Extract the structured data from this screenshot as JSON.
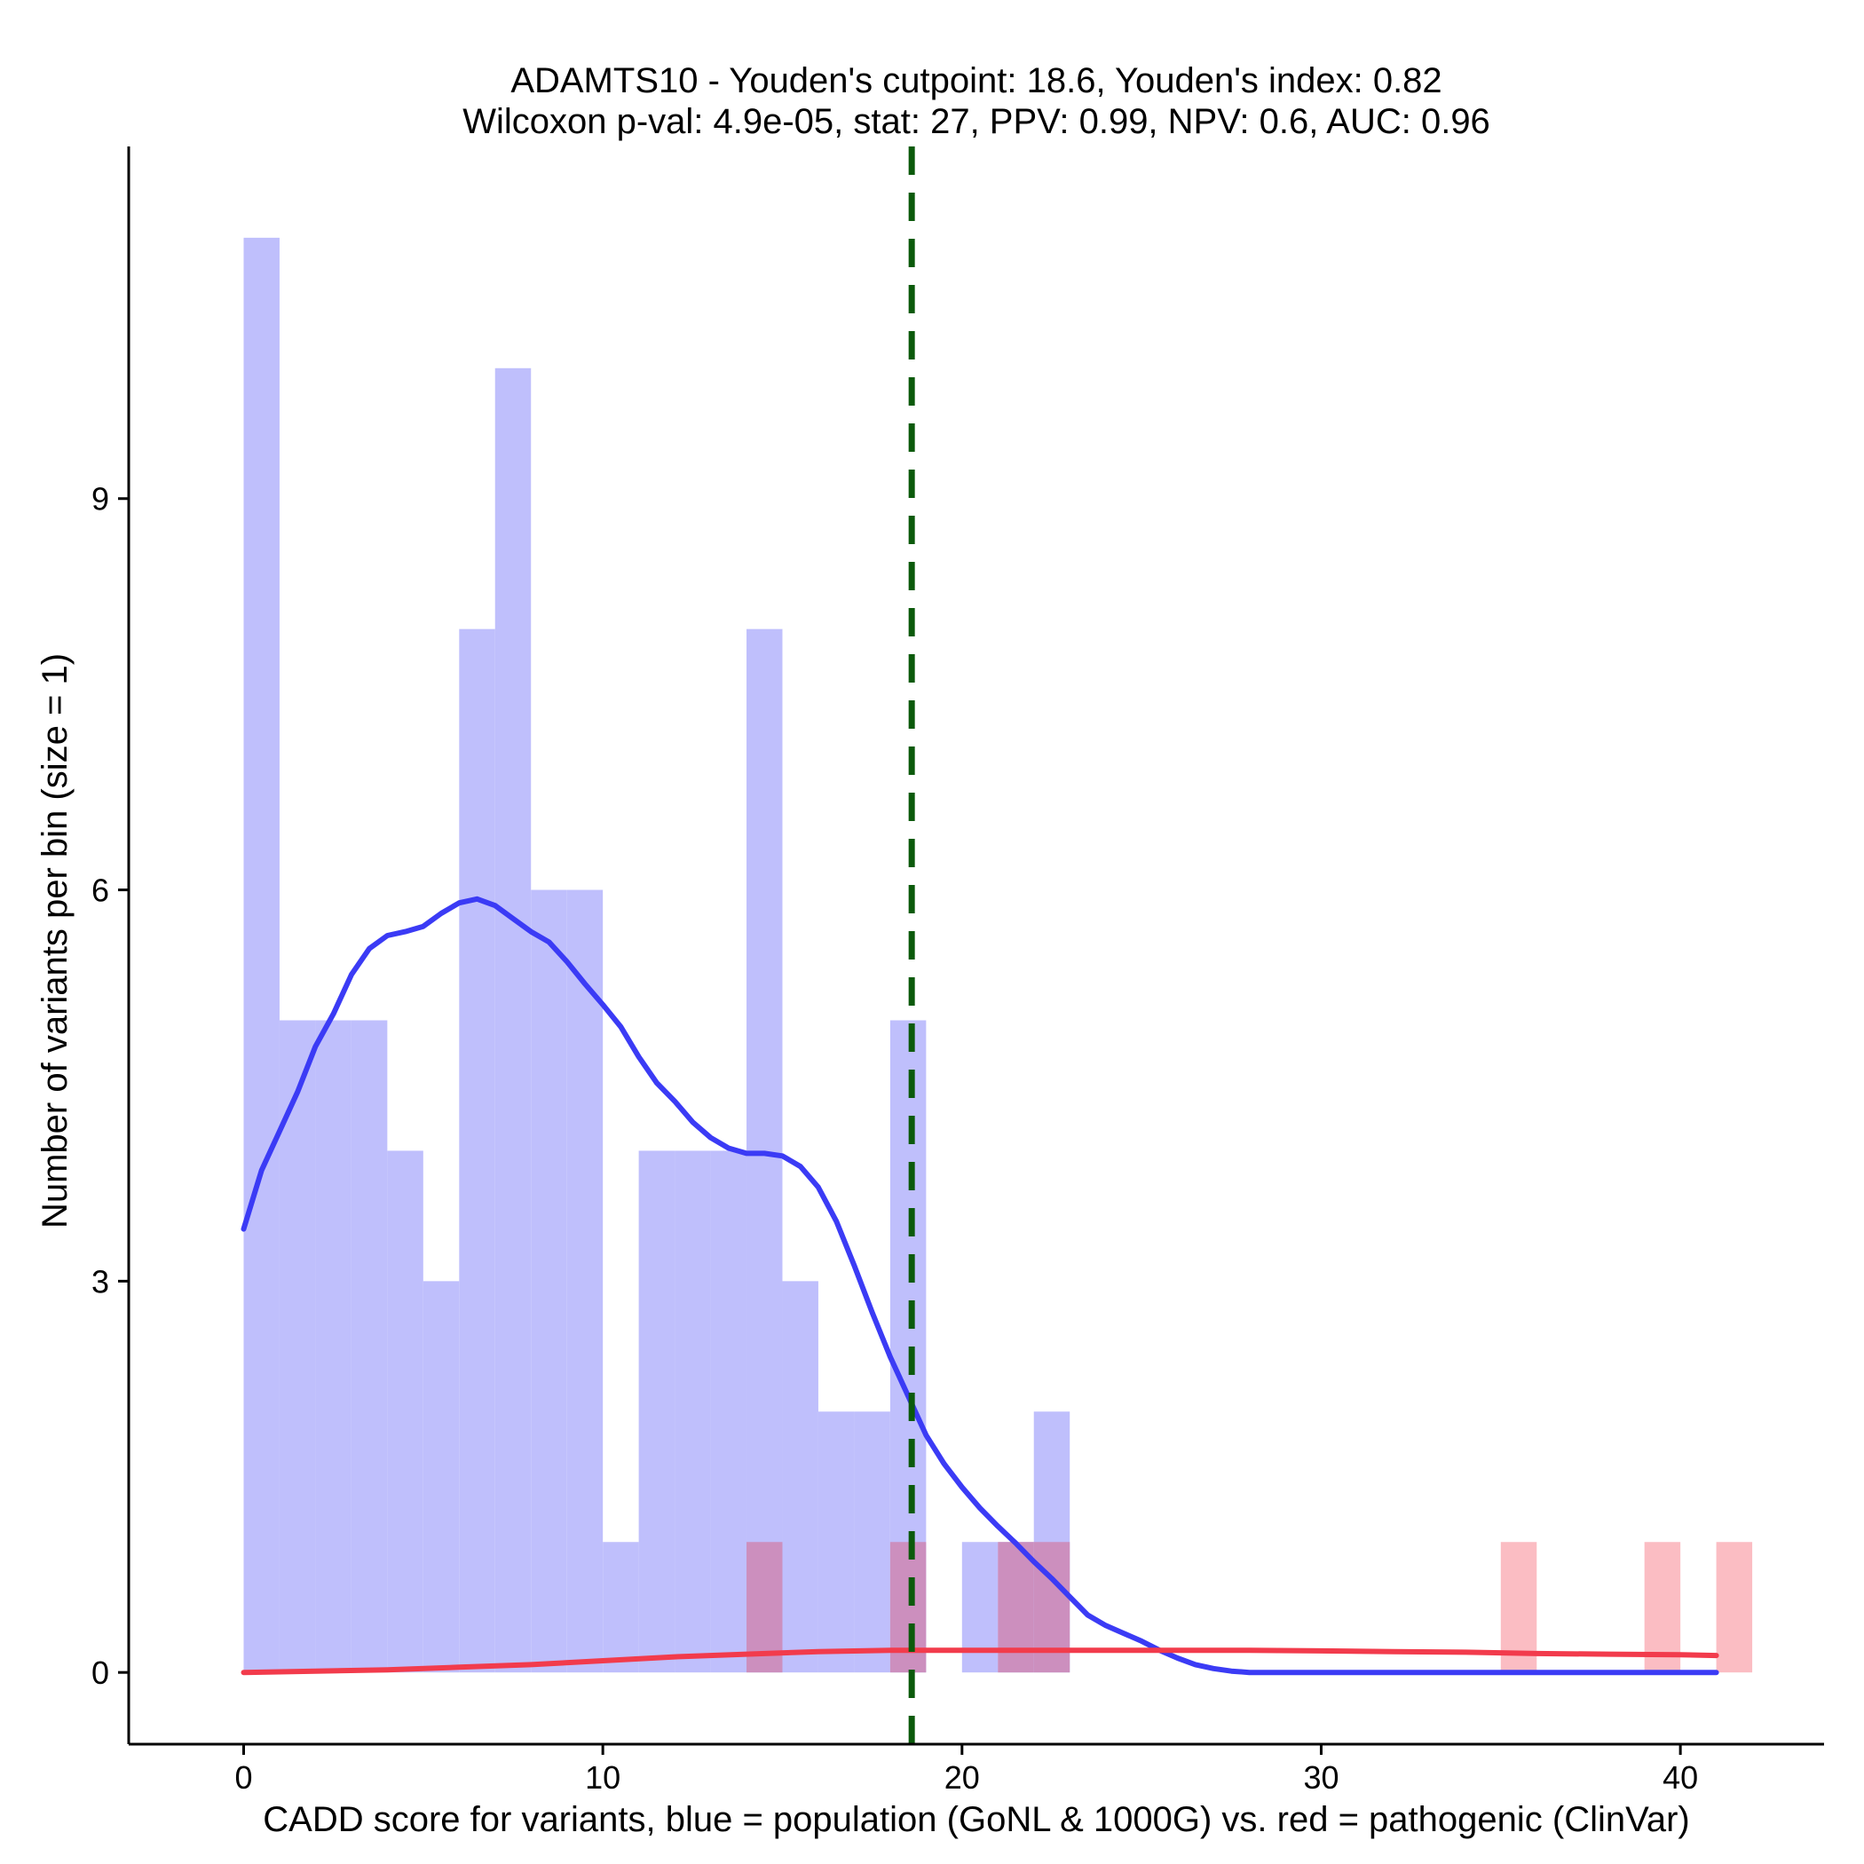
{
  "chart_data": {
    "type": "histogram",
    "title_line1": "ADAMTS10 - Youden's cutpoint: 18.6, Youden's index: 0.82",
    "title_line2": "Wilcoxon p-val: 4.9e-05, stat: 27, PPV: 0.99, NPV: 0.6, AUC: 0.96",
    "xlabel": "CADD score for variants, blue = population (GoNL & 1000G) vs. red = pathogenic (ClinVar)",
    "ylabel": "Number of variants per bin (size = 1)",
    "xlim": [
      -3.2,
      44.0
    ],
    "ylim": [
      -0.55,
      11.7
    ],
    "xticks": [
      0,
      10,
      20,
      30,
      40
    ],
    "xtick_labels": [
      "0",
      "10",
      "20",
      "30",
      "40"
    ],
    "yticks": [
      0,
      3,
      6,
      9
    ],
    "ytick_labels": [
      "0",
      "3",
      "6",
      "9"
    ],
    "bin_size": 1,
    "cutpoint": 18.6,
    "colors": {
      "population_bar": "#bfbffc",
      "pathogenic_bar": "#fbbdc3",
      "overlap_bar": "#cc8fbe",
      "population_line": "#3b3bf5",
      "pathogenic_line": "#f23b4c",
      "cutpoint_line": "#0b5a0b"
    },
    "series": [
      {
        "name": "population (GoNL & 1000G)",
        "bins": [
          {
            "start": 0,
            "count": 11
          },
          {
            "start": 1,
            "count": 5
          },
          {
            "start": 2,
            "count": 5
          },
          {
            "start": 3,
            "count": 5
          },
          {
            "start": 4,
            "count": 4
          },
          {
            "start": 5,
            "count": 3
          },
          {
            "start": 6,
            "count": 8
          },
          {
            "start": 7,
            "count": 10
          },
          {
            "start": 8,
            "count": 6
          },
          {
            "start": 9,
            "count": 6
          },
          {
            "start": 10,
            "count": 1
          },
          {
            "start": 11,
            "count": 4
          },
          {
            "start": 12,
            "count": 4
          },
          {
            "start": 13,
            "count": 4
          },
          {
            "start": 14,
            "count": 8
          },
          {
            "start": 15,
            "count": 3
          },
          {
            "start": 16,
            "count": 2
          },
          {
            "start": 17,
            "count": 2
          },
          {
            "start": 18,
            "count": 5
          },
          {
            "start": 20,
            "count": 1
          },
          {
            "start": 21,
            "count": 1
          },
          {
            "start": 22,
            "count": 2
          }
        ],
        "density_curve": [
          [
            0,
            3.4
          ],
          [
            0.5,
            3.85
          ],
          [
            1,
            4.15
          ],
          [
            1.5,
            4.45
          ],
          [
            2,
            4.8
          ],
          [
            2.5,
            5.05
          ],
          [
            3,
            5.35
          ],
          [
            3.5,
            5.55
          ],
          [
            4,
            5.65
          ],
          [
            4.5,
            5.68
          ],
          [
            5,
            5.72
          ],
          [
            5.5,
            5.82
          ],
          [
            6,
            5.9
          ],
          [
            6.5,
            5.93
          ],
          [
            7,
            5.88
          ],
          [
            7.5,
            5.78
          ],
          [
            8,
            5.68
          ],
          [
            8.5,
            5.6
          ],
          [
            9,
            5.45
          ],
          [
            9.5,
            5.28
          ],
          [
            10,
            5.12
          ],
          [
            10.5,
            4.95
          ],
          [
            11,
            4.72
          ],
          [
            11.5,
            4.52
          ],
          [
            12,
            4.38
          ],
          [
            12.5,
            4.22
          ],
          [
            13,
            4.1
          ],
          [
            13.5,
            4.02
          ],
          [
            14,
            3.98
          ],
          [
            14.5,
            3.98
          ],
          [
            15,
            3.96
          ],
          [
            15.5,
            3.88
          ],
          [
            16,
            3.72
          ],
          [
            16.5,
            3.46
          ],
          [
            17,
            3.12
          ],
          [
            17.5,
            2.76
          ],
          [
            18,
            2.42
          ],
          [
            18.5,
            2.12
          ],
          [
            19,
            1.82
          ],
          [
            19.5,
            1.6
          ],
          [
            20,
            1.42
          ],
          [
            20.5,
            1.26
          ],
          [
            21,
            1.12
          ],
          [
            21.5,
            0.99
          ],
          [
            22,
            0.85
          ],
          [
            22.5,
            0.72
          ],
          [
            23,
            0.58
          ],
          [
            23.5,
            0.44
          ],
          [
            24,
            0.36
          ],
          [
            24.5,
            0.3
          ],
          [
            25,
            0.24
          ],
          [
            25.5,
            0.17
          ],
          [
            26,
            0.11
          ],
          [
            26.5,
            0.06
          ],
          [
            27,
            0.03
          ],
          [
            27.5,
            0.01
          ],
          [
            28,
            0
          ],
          [
            30,
            0
          ],
          [
            35,
            0
          ],
          [
            41,
            0
          ]
        ]
      },
      {
        "name": "pathogenic (ClinVar)",
        "bins": [
          {
            "start": 14,
            "count": 1
          },
          {
            "start": 18,
            "count": 1
          },
          {
            "start": 21,
            "count": 1
          },
          {
            "start": 22,
            "count": 1
          },
          {
            "start": 35,
            "count": 1
          },
          {
            "start": 39,
            "count": 1
          },
          {
            "start": 41,
            "count": 1
          }
        ],
        "density_curve": [
          [
            0,
            0
          ],
          [
            2,
            0.01
          ],
          [
            4,
            0.02
          ],
          [
            6,
            0.04
          ],
          [
            8,
            0.06
          ],
          [
            10,
            0.09
          ],
          [
            12,
            0.12
          ],
          [
            14,
            0.14
          ],
          [
            16,
            0.16
          ],
          [
            18,
            0.17
          ],
          [
            20,
            0.17
          ],
          [
            22,
            0.17
          ],
          [
            24,
            0.17
          ],
          [
            26,
            0.17
          ],
          [
            28,
            0.17
          ],
          [
            30,
            0.165
          ],
          [
            32,
            0.16
          ],
          [
            34,
            0.155
          ],
          [
            36,
            0.145
          ],
          [
            38,
            0.14
          ],
          [
            40,
            0.135
          ],
          [
            41,
            0.13
          ]
        ]
      }
    ]
  }
}
